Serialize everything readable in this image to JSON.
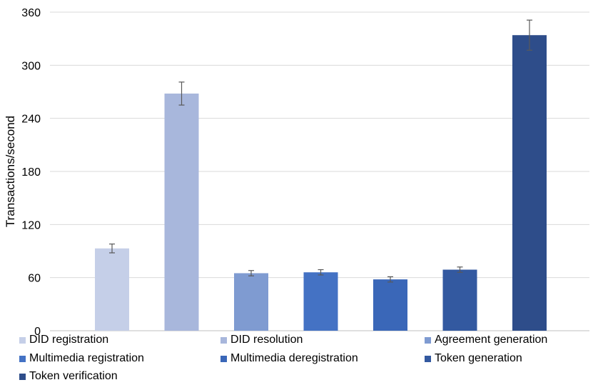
{
  "chart_data": {
    "type": "bar",
    "title": "",
    "xlabel": "",
    "ylabel": "Transactions/second",
    "ylim": [
      0,
      360
    ],
    "yticks": [
      0,
      60,
      120,
      180,
      240,
      300,
      360
    ],
    "grid": true,
    "legend_position": "bottom",
    "categories": [
      "DID registration",
      "DID resolution",
      "Agreement generation",
      "Multimedia registration",
      "Multimedia deregistration",
      "Token generation",
      "Token verification"
    ],
    "values": [
      93,
      268,
      65,
      66,
      58,
      69,
      334
    ],
    "error": [
      5,
      13,
      3,
      3,
      3,
      3,
      17
    ],
    "colors": [
      "#c5cfe8",
      "#a8b7dc",
      "#7f9bd1",
      "#4472c4",
      "#3a67b8",
      "#3359a0",
      "#2e4d8a"
    ]
  }
}
